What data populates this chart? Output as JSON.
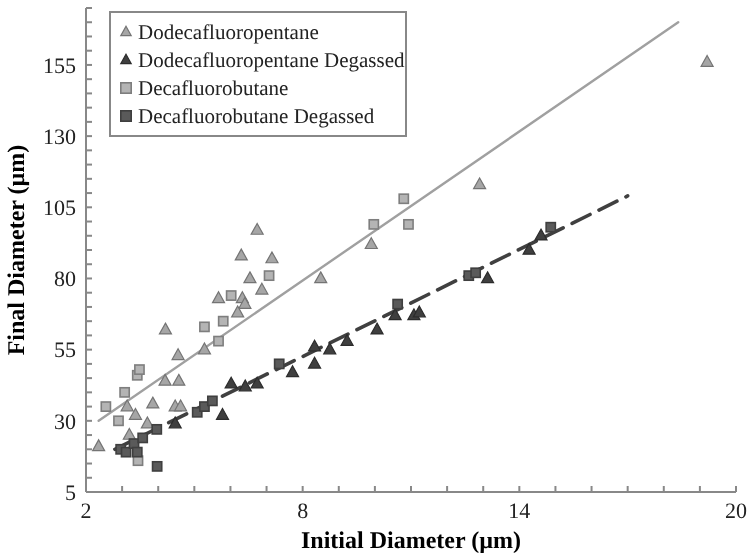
{
  "chart_data": {
    "type": "scatter",
    "xlabel": "Initial Diameter (µm)",
    "ylabel": "Final Diameter (µm)",
    "xlim": [
      2,
      20
    ],
    "ylim": [
      5,
      175
    ],
    "xticks": [
      2,
      {
        "value": 3,
        "label": null
      },
      {
        "value": 4,
        "label": null
      },
      {
        "value": 5,
        "label": null
      },
      {
        "value": 6,
        "label": null
      },
      {
        "value": 7,
        "label": null
      },
      8,
      {
        "value": 9,
        "label": null
      },
      {
        "value": 10,
        "label": null
      },
      {
        "value": 11,
        "label": null
      },
      {
        "value": 12,
        "label": null
      },
      {
        "value": 13,
        "label": null
      },
      14,
      {
        "value": 15,
        "label": null
      },
      {
        "value": 16,
        "label": null
      },
      {
        "value": 17,
        "label": null
      },
      {
        "value": 18,
        "label": null
      },
      {
        "value": 19,
        "label": null
      },
      20
    ],
    "yticks": [
      5,
      {
        "value": 10,
        "label": null
      },
      {
        "value": 15,
        "label": null
      },
      {
        "value": 20,
        "label": null
      },
      {
        "value": 25,
        "label": null
      },
      30,
      {
        "value": 35,
        "label": null
      },
      {
        "value": 40,
        "label": null
      },
      {
        "value": 45,
        "label": null
      },
      {
        "value": 50,
        "label": null
      },
      55,
      {
        "value": 60,
        "label": null
      },
      {
        "value": 65,
        "label": null
      },
      {
        "value": 70,
        "label": null
      },
      {
        "value": 75,
        "label": null
      },
      80,
      {
        "value": 85,
        "label": null
      },
      {
        "value": 90,
        "label": null
      },
      {
        "value": 95,
        "label": null
      },
      {
        "value": 100,
        "label": null
      },
      105,
      {
        "value": 110,
        "label": null
      },
      {
        "value": 115,
        "label": null
      },
      {
        "value": 120,
        "label": null
      },
      {
        "value": 125,
        "label": null
      },
      130,
      {
        "value": 135,
        "label": null
      },
      {
        "value": 140,
        "label": null
      },
      {
        "value": 145,
        "label": null
      },
      {
        "value": 150,
        "label": null
      },
      155,
      {
        "value": 160,
        "label": null
      },
      {
        "value": 165,
        "label": null
      },
      {
        "value": 170,
        "label": null
      },
      {
        "value": 175,
        "label": null
      }
    ],
    "grid": false,
    "legend": "top left",
    "series": [
      {
        "type": "line",
        "color": "#a0a0a0",
        "line_style": "solid",
        "marker": "none",
        "x": [
          2.35,
          18.4
        ],
        "values": [
          30,
          170
        ]
      },
      {
        "type": "line",
        "color": "#404040",
        "line_style": "dashed",
        "marker": "none",
        "x": [
          2.8,
          17
        ],
        "values": [
          20,
          109
        ]
      },
      {
        "name": "Dodecafluoropentane",
        "color": "#a6a6a6",
        "marker": "triangle",
        "x": [
          2.35,
          3.2,
          3.37,
          3.14,
          3.7,
          3.85,
          4.2,
          4.19,
          4.55,
          4.57,
          4.47,
          4.62,
          5.28,
          5.67,
          6.3,
          6.33,
          6.4,
          6.2,
          6.54,
          6.74,
          6.87,
          7.15,
          8.5,
          9.9,
          12.9,
          19.2
        ],
        "values": [
          21,
          25,
          32,
          35,
          29,
          36,
          62,
          44,
          53,
          44,
          35,
          35,
          55,
          73,
          88,
          73,
          71,
          68,
          80,
          97,
          76,
          87,
          80,
          92,
          113,
          156
        ]
      },
      {
        "name": "Dodecafluoropentane Degassed",
        "color": "#3f3f3f",
        "marker": "triangle",
        "x": [
          4.47,
          5.78,
          6.02,
          6.41,
          6.74,
          7.72,
          8.33,
          8.33,
          8.75,
          9.23,
          10.06,
          10.56,
          11.08,
          11.23,
          13.12,
          14.27,
          14.6
        ],
        "values": [
          29,
          32,
          43,
          42,
          43,
          47,
          56,
          50,
          55,
          58,
          62,
          67,
          67,
          68,
          80,
          90,
          95
        ]
      },
      {
        "name": "Decafluorobutane",
        "color": "#b4b4b4",
        "marker": "square",
        "x": [
          2.55,
          2.9,
          3.07,
          3.42,
          3.48,
          3.44,
          5.28,
          5.8,
          5.67,
          6.02,
          7.07,
          9.97,
          10.8,
          10.93
        ],
        "values": [
          35,
          30,
          40,
          46,
          48,
          16,
          63,
          65,
          58,
          74,
          81,
          99,
          108,
          99
        ]
      },
      {
        "name": "Decafluorobutane Degassed",
        "color": "#5a5a5a",
        "marker": "square",
        "x": [
          2.96,
          3.11,
          3.33,
          3.42,
          3.57,
          3.96,
          3.97,
          5.08,
          5.28,
          5.5,
          7.35,
          10.63,
          12.6,
          12.79,
          14.87
        ],
        "values": [
          20,
          19,
          22,
          19,
          24,
          27,
          14,
          33,
          35,
          37,
          50,
          71,
          81,
          82,
          98
        ]
      }
    ]
  }
}
